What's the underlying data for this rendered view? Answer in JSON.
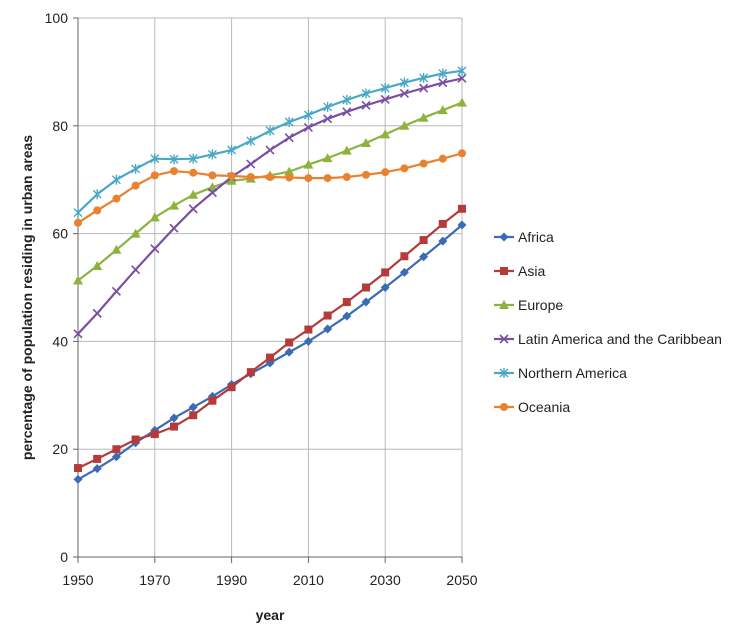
{
  "chart_data": {
    "type": "line",
    "title": "",
    "xlabel": "year",
    "ylabel": "percentage of population residing in urban areas",
    "xlim": [
      1950,
      2050
    ],
    "ylim": [
      0,
      100
    ],
    "x_ticks": [
      1950,
      1970,
      1990,
      2010,
      2030,
      2050
    ],
    "y_ticks": [
      0,
      20,
      40,
      60,
      80,
      100
    ],
    "grid": true,
    "legend_position": "right",
    "x": [
      1950,
      1955,
      1960,
      1965,
      1970,
      1975,
      1980,
      1985,
      1990,
      1995,
      2000,
      2005,
      2010,
      2015,
      2020,
      2025,
      2030,
      2035,
      2040,
      2045,
      2050
    ],
    "series": [
      {
        "name": "Africa",
        "color": "#3A6BB5",
        "marker": "diamond",
        "values": [
          14.4,
          16.4,
          18.6,
          21.2,
          23.5,
          25.8,
          27.8,
          29.8,
          32.0,
          34.0,
          36.0,
          38.0,
          40.0,
          42.3,
          44.7,
          47.3,
          50.0,
          52.8,
          55.7,
          58.6,
          61.6
        ]
      },
      {
        "name": "Asia",
        "color": "#B53A3A",
        "marker": "square",
        "values": [
          16.5,
          18.2,
          20.0,
          21.8,
          22.8,
          24.2,
          26.3,
          29.0,
          31.5,
          34.3,
          37.0,
          39.8,
          42.2,
          44.8,
          47.3,
          50.0,
          52.8,
          55.8,
          58.8,
          61.8,
          64.6
        ]
      },
      {
        "name": "Europe",
        "color": "#8DB33E",
        "marker": "triangle",
        "values": [
          51.3,
          54.0,
          57.0,
          60.0,
          63.0,
          65.2,
          67.2,
          68.6,
          69.8,
          70.2,
          70.8,
          71.5,
          72.8,
          74.0,
          75.4,
          76.8,
          78.4,
          80.0,
          81.5,
          82.9,
          84.3
        ]
      },
      {
        "name": "Latin America and the Caribbean",
        "color": "#7A4FA3",
        "marker": "x",
        "values": [
          41.4,
          45.2,
          49.3,
          53.3,
          57.2,
          61.0,
          64.6,
          67.6,
          70.5,
          72.9,
          75.5,
          77.8,
          79.7,
          81.3,
          82.6,
          83.8,
          84.9,
          86.0,
          87.0,
          88.0,
          88.8
        ]
      },
      {
        "name": "Northern America",
        "color": "#4AA8C7",
        "marker": "star",
        "values": [
          63.9,
          67.3,
          70.0,
          72.0,
          73.9,
          73.8,
          73.9,
          74.7,
          75.5,
          77.2,
          79.1,
          80.7,
          82.0,
          83.5,
          84.8,
          86.0,
          87.0,
          88.0,
          88.9,
          89.7,
          90.2
        ]
      },
      {
        "name": "Oceania",
        "color": "#E8822F",
        "marker": "circle",
        "values": [
          62.0,
          64.3,
          66.5,
          68.9,
          70.8,
          71.6,
          71.3,
          70.8,
          70.7,
          70.5,
          70.5,
          70.4,
          70.3,
          70.3,
          70.5,
          70.9,
          71.4,
          72.1,
          73.0,
          73.9,
          74.9
        ]
      }
    ]
  }
}
